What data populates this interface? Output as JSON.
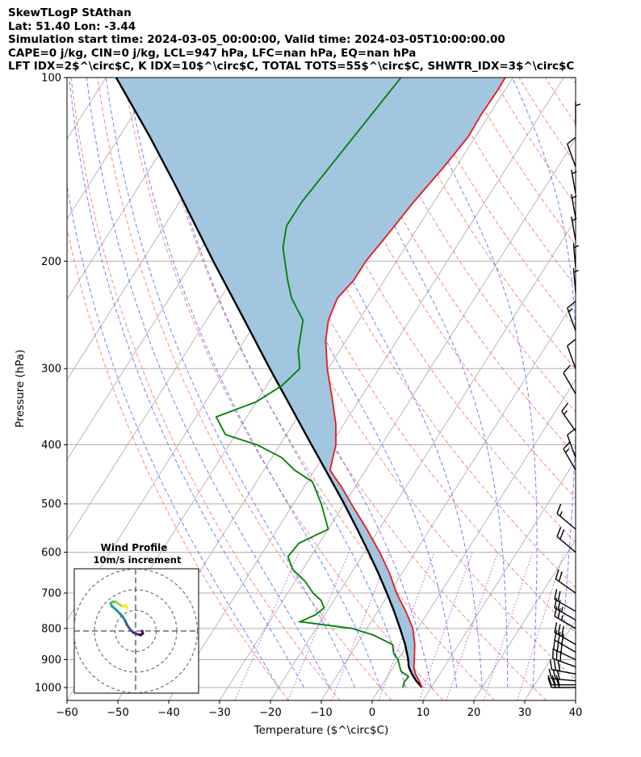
{
  "header": {
    "title": "SkewTLogP StAthan",
    "latlon": "Lat: 51.40   Lon: -3.44",
    "times": "Simulation start time: 2024-03-05_00:00:00, Valid time: 2024-03-05T10:00:00.00",
    "params1": "CAPE=0 j/kg, CIN=0 j/kg, LCL=947 hPa, LFC=nan hPa, EQ=nan hPa",
    "params2": "LFT IDX=2$^\\circ$C, K IDX=10$^\\circ$C, TOTAL TOTS=55$^\\circ$C, SHWTR_IDX=3$^\\circ$C"
  },
  "chart_data": {
    "type": "line",
    "chart_kind": "skew-T log-P",
    "xlabel": "Temperature ($^\\circ$C)",
    "ylabel": "Pressure (hPa)",
    "xlim": [
      -60,
      40
    ],
    "ylim": [
      1050,
      100
    ],
    "yscale": "log",
    "x_ticks": [
      -60,
      -50,
      -40,
      -30,
      -20,
      -10,
      0,
      10,
      20,
      30,
      40
    ],
    "x_tick_labels": [
      "−60",
      "−50",
      "−40",
      "−30",
      "−20",
      "−10",
      "0",
      "10",
      "20",
      "30",
      "40"
    ],
    "y_ticks": [
      1000,
      900,
      800,
      700,
      600,
      500,
      400,
      300,
      200,
      100
    ],
    "y_tick_labels": [
      "1000",
      "900",
      "800",
      "700",
      "600",
      "500",
      "400",
      "300",
      "200",
      "100"
    ],
    "grid": true,
    "colors": {
      "temperature": "#e41a1c",
      "dewpoint": "#008000",
      "parcel": "#000000",
      "cape_fill": "#a2c5e0",
      "dry_adiabats": "#f87171",
      "moist_adiabats": "#5a6cf0",
      "mixing_ratio": "#9a4fd0",
      "isotherms": "#b0b0b0",
      "barbs": "#000000"
    },
    "series": [
      {
        "key": "temperature",
        "pressure": [
          1000,
          975,
          950,
          925,
          900,
          850,
          800,
          750,
          700,
          650,
          600,
          550,
          500,
          470,
          450,
          440,
          420,
          400,
          370,
          340,
          300,
          270,
          250,
          230,
          215,
          200,
          180,
          160,
          140,
          125,
          115,
          105,
          100
        ],
        "values": [
          8.2,
          6.8,
          5.2,
          4.0,
          3.2,
          1.4,
          -1.0,
          -4.5,
          -8.6,
          -12.4,
          -17.0,
          -22.4,
          -28.6,
          -32.5,
          -35.5,
          -37.0,
          -38.0,
          -39.0,
          -41.6,
          -45.0,
          -50.2,
          -54.0,
          -56.0,
          -57.0,
          -56.0,
          -56.0,
          -55.0,
          -54.0,
          -52.4,
          -51.4,
          -51.6,
          -51.4,
          -51.5
        ]
      },
      {
        "key": "dewpoint",
        "pressure": [
          1000,
          980,
          960,
          940,
          920,
          900,
          880,
          850,
          820,
          800,
          780,
          760,
          740,
          720,
          700,
          670,
          640,
          610,
          580,
          550,
          500,
          460,
          440,
          420,
          400,
          385,
          360,
          340,
          320,
          300,
          280,
          250,
          230,
          215,
          190,
          175,
          160,
          100
        ],
        "values": [
          4.4,
          4.0,
          4.2,
          2.0,
          1.0,
          0.0,
          -1.6,
          -3.0,
          -8.0,
          -13.0,
          -24.0,
          -21.8,
          -21.0,
          -22.5,
          -25.0,
          -28.0,
          -32.0,
          -34.5,
          -34.0,
          -30.0,
          -34.5,
          -39.0,
          -44.0,
          -48.0,
          -54.5,
          -62.0,
          -66.0,
          -60.0,
          -57.0,
          -55.6,
          -58.2,
          -61.0,
          -66.0,
          -69.0,
          -74.0,
          -76.0,
          -76.0,
          -72.0
        ]
      },
      {
        "key": "parcel",
        "pressure": [
          1000,
          975,
          950,
          925,
          900,
          850,
          800,
          750,
          700,
          650,
          600,
          550,
          500,
          450,
          400,
          350,
          300,
          250,
          200,
          150,
          125,
          100
        ],
        "values": [
          8.2,
          6.2,
          4.5,
          3.0,
          2.0,
          -0.5,
          -3.5,
          -6.8,
          -10.5,
          -14.6,
          -19.2,
          -24.3,
          -30.0,
          -36.5,
          -43.8,
          -52.0,
          -61.5,
          -72.5,
          -86.0,
          -103.0,
          -114.0,
          -128.0
        ]
      }
    ],
    "wind_barbs": [
      {
        "pressure": 1000,
        "speed_kt": 30,
        "dir": 270
      },
      {
        "pressure": 990,
        "speed_kt": 30,
        "dir": 270
      },
      {
        "pressure": 975,
        "speed_kt": 30,
        "dir": 275
      },
      {
        "pressure": 950,
        "speed_kt": 30,
        "dir": 280
      },
      {
        "pressure": 925,
        "speed_kt": 30,
        "dir": 290
      },
      {
        "pressure": 900,
        "speed_kt": 30,
        "dir": 295
      },
      {
        "pressure": 875,
        "speed_kt": 30,
        "dir": 300
      },
      {
        "pressure": 850,
        "speed_kt": 30,
        "dir": 300
      },
      {
        "pressure": 800,
        "speed_kt": 25,
        "dir": 300
      },
      {
        "pressure": 775,
        "speed_kt": 25,
        "dir": 300
      },
      {
        "pressure": 750,
        "speed_kt": 20,
        "dir": 300
      },
      {
        "pressure": 700,
        "speed_kt": 20,
        "dir": 305
      },
      {
        "pressure": 600,
        "speed_kt": 20,
        "dir": 310
      },
      {
        "pressure": 550,
        "speed_kt": 15,
        "dir": 310
      },
      {
        "pressure": 440,
        "speed_kt": 15,
        "dir": 330
      },
      {
        "pressure": 420,
        "speed_kt": 10,
        "dir": 340
      },
      {
        "pressure": 380,
        "speed_kt": 15,
        "dir": 325
      },
      {
        "pressure": 330,
        "speed_kt": 10,
        "dir": 330
      },
      {
        "pressure": 300,
        "speed_kt": 10,
        "dir": 340
      },
      {
        "pressure": 260,
        "speed_kt": 15,
        "dir": 340
      },
      {
        "pressure": 225,
        "speed_kt": 5,
        "dir": 355
      },
      {
        "pressure": 205,
        "speed_kt": 5,
        "dir": 355
      },
      {
        "pressure": 185,
        "speed_kt": 5,
        "dir": 350
      },
      {
        "pressure": 170,
        "speed_kt": 5,
        "dir": 350
      },
      {
        "pressure": 155,
        "speed_kt": 5,
        "dir": 350
      },
      {
        "pressure": 140,
        "speed_kt": 10,
        "dir": 340
      },
      {
        "pressure": 120,
        "speed_kt": 5,
        "dir": 360
      }
    ],
    "hodograph": {
      "title": "Wind Profile",
      "subtitle": "10m/s increment",
      "rings_mps": [
        10,
        20,
        30
      ],
      "points": [
        [
          3.2,
          0
        ],
        [
          3.5,
          -1.2
        ],
        [
          2.5,
          -2.0
        ],
        [
          1.0,
          -1.6
        ],
        [
          -0.8,
          -1.0
        ],
        [
          -2.5,
          0.5
        ],
        [
          -4.2,
          3.0
        ],
        [
          -5.2,
          5.2
        ],
        [
          -6.5,
          7.2
        ],
        [
          -8.0,
          8.8
        ],
        [
          -9.8,
          10.6
        ],
        [
          -11.5,
          12.0
        ],
        [
          -12.2,
          13.5
        ],
        [
          -11.0,
          14.2
        ],
        [
          -9.2,
          14.0
        ],
        [
          -8.0,
          12.8
        ],
        [
          -6.2,
          12.0
        ],
        [
          -4.6,
          12.5
        ],
        [
          -4.2,
          11.0
        ]
      ]
    }
  }
}
